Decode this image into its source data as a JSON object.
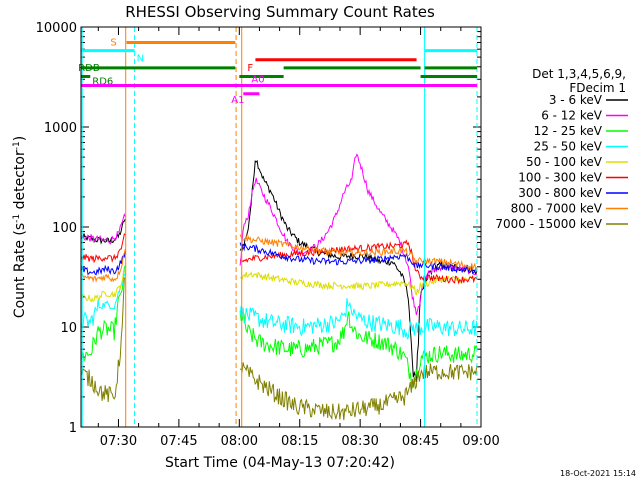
{
  "chart_data": {
    "type": "line",
    "title": "RHESSI Observing Summary Count Rates",
    "xlabel": "Start Time (04-May-13 07:20:42)",
    "ylabel_main": "Count Rate (s",
    "ylabel_sup1": "-1",
    "ylabel_mid": " detector",
    "ylabel_sup2": "-1",
    "ylabel_end": ")",
    "yscale": "log",
    "ylim": [
      1,
      10000
    ],
    "xlim": [
      20.7,
      120
    ],
    "x_unit": "minutes after 07:00 UT",
    "x_ticks": [
      {
        "value": 30,
        "label": "07:30"
      },
      {
        "value": 45,
        "label": "07:45"
      },
      {
        "value": 60,
        "label": "08:00"
      },
      {
        "value": 75,
        "label": "08:15"
      },
      {
        "value": 90,
        "label": "08:30"
      },
      {
        "value": 105,
        "label": "08:45"
      },
      {
        "value": 120,
        "label": "09:00"
      }
    ],
    "y_ticks": [
      {
        "value": 1,
        "label": "1"
      },
      {
        "value": 10,
        "label": "10"
      },
      {
        "value": 100,
        "label": "100"
      },
      {
        "value": 1000,
        "label": "1000"
      },
      {
        "value": 10000,
        "label": "10000"
      }
    ],
    "legend_header": [
      "Det 1,3,4,5,6,9,",
      "FDecim 1"
    ],
    "series": [
      {
        "name": "3 - 6 keV",
        "color": "#000000",
        "points": [
          [
            20.7,
            80
          ],
          [
            24,
            75
          ],
          [
            28,
            72
          ],
          [
            30,
            80
          ],
          [
            31,
            100
          ],
          [
            31.5,
            120
          ],
          [
            60.2,
            55
          ],
          [
            62,
            85
          ],
          [
            63,
            180
          ],
          [
            64,
            500
          ],
          [
            66,
            300
          ],
          [
            68,
            220
          ],
          [
            70,
            140
          ],
          [
            72,
            95
          ],
          [
            75,
            70
          ],
          [
            80,
            55
          ],
          [
            85,
            50
          ],
          [
            88,
            52
          ],
          [
            92,
            50
          ],
          [
            95,
            45
          ],
          [
            98,
            45
          ],
          [
            100,
            35
          ],
          [
            101,
            28
          ],
          [
            102,
            20
          ],
          [
            103,
            4
          ],
          [
            104,
            3.2
          ],
          [
            105,
            20
          ],
          [
            107,
            35
          ],
          [
            110,
            42
          ],
          [
            113,
            40
          ],
          [
            117,
            38
          ],
          [
            119,
            35
          ]
        ]
      },
      {
        "name": "6 - 12 keV",
        "color": "#ff00ff",
        "points": [
          [
            20.7,
            80
          ],
          [
            24,
            76
          ],
          [
            28,
            73
          ],
          [
            30,
            85
          ],
          [
            31,
            110
          ],
          [
            31.5,
            125
          ],
          [
            60.2,
            40
          ],
          [
            61,
            100
          ],
          [
            62,
            120
          ],
          [
            63,
            200
          ],
          [
            64,
            300
          ],
          [
            66,
            210
          ],
          [
            68,
            150
          ],
          [
            70,
            100
          ],
          [
            72,
            70
          ],
          [
            75,
            55
          ],
          [
            78,
            60
          ],
          [
            80,
            70
          ],
          [
            82,
            90
          ],
          [
            84,
            130
          ],
          [
            86,
            220
          ],
          [
            88,
            300
          ],
          [
            89,
            550
          ],
          [
            90,
            430
          ],
          [
            92,
            230
          ],
          [
            95,
            140
          ],
          [
            98,
            95
          ],
          [
            100,
            70
          ],
          [
            102,
            40
          ],
          [
            103,
            20
          ],
          [
            104,
            14
          ],
          [
            105,
            22
          ],
          [
            107,
            35
          ],
          [
            110,
            40
          ],
          [
            115,
            38
          ],
          [
            119,
            35
          ]
        ]
      },
      {
        "name": "12 - 25 keV",
        "color": "#00ff00",
        "points": [
          [
            20.7,
            5
          ],
          [
            23,
            5.5
          ],
          [
            25,
            9
          ],
          [
            27,
            9.5
          ],
          [
            29,
            9
          ],
          [
            30,
            18
          ],
          [
            31,
            25
          ],
          [
            31.5,
            40
          ],
          [
            60.2,
            14
          ],
          [
            62,
            9
          ],
          [
            65,
            7
          ],
          [
            68,
            6.5
          ],
          [
            72,
            6
          ],
          [
            76,
            6
          ],
          [
            80,
            6.5
          ],
          [
            84,
            7
          ],
          [
            86,
            9
          ],
          [
            87,
            14
          ],
          [
            88,
            10
          ],
          [
            90,
            8
          ],
          [
            93,
            7.5
          ],
          [
            96,
            7
          ],
          [
            99,
            6
          ],
          [
            101,
            5
          ],
          [
            103,
            3
          ],
          [
            104,
            3.5
          ],
          [
            105,
            5
          ],
          [
            110,
            5.5
          ],
          [
            115,
            5.2
          ],
          [
            119,
            5.5
          ]
        ]
      },
      {
        "name": "25 - 50 keV",
        "color": "#00ffff",
        "points": [
          [
            20.7,
            12
          ],
          [
            23,
            11
          ],
          [
            25,
            16
          ],
          [
            27,
            17
          ],
          [
            29,
            16
          ],
          [
            30,
            22
          ],
          [
            31,
            28
          ],
          [
            31.5,
            35
          ],
          [
            60.2,
            14
          ],
          [
            62,
            13
          ],
          [
            65,
            12
          ],
          [
            68,
            11
          ],
          [
            72,
            10.5
          ],
          [
            76,
            10
          ],
          [
            80,
            10.5
          ],
          [
            84,
            11
          ],
          [
            86,
            13
          ],
          [
            87,
            18
          ],
          [
            88,
            14
          ],
          [
            90,
            12
          ],
          [
            93,
            11
          ],
          [
            96,
            10.5
          ],
          [
            100,
            10
          ],
          [
            102,
            9
          ],
          [
            103,
            10
          ],
          [
            104,
            9.5
          ],
          [
            105,
            10
          ],
          [
            110,
            10
          ],
          [
            115,
            9.5
          ],
          [
            119,
            9.8
          ]
        ]
      },
      {
        "name": "50 - 100 keV",
        "color": "#dddd00",
        "points": [
          [
            20.7,
            20
          ],
          [
            24,
            19
          ],
          [
            27,
            22
          ],
          [
            29,
            21
          ],
          [
            30,
            24
          ],
          [
            31,
            30
          ],
          [
            31.5,
            35
          ],
          [
            60.2,
            32
          ],
          [
            63,
            34
          ],
          [
            66,
            32
          ],
          [
            70,
            30
          ],
          [
            74,
            28
          ],
          [
            78,
            27
          ],
          [
            82,
            26
          ],
          [
            86,
            26
          ],
          [
            90,
            25.5
          ],
          [
            94,
            26
          ],
          [
            98,
            27
          ],
          [
            101,
            28
          ],
          [
            103,
            25
          ],
          [
            104,
            22
          ],
          [
            105,
            26
          ],
          [
            110,
            30
          ],
          [
            115,
            30
          ],
          [
            119,
            30
          ]
        ]
      },
      {
        "name": "100 - 300 keV",
        "color": "#ff0000",
        "points": [
          [
            20.7,
            50
          ],
          [
            24,
            48
          ],
          [
            27,
            50
          ],
          [
            29,
            48
          ],
          [
            30,
            55
          ],
          [
            31,
            65
          ],
          [
            31.5,
            80
          ],
          [
            60.2,
            45
          ],
          [
            63,
            48
          ],
          [
            66,
            50
          ],
          [
            70,
            52
          ],
          [
            74,
            54
          ],
          [
            78,
            56
          ],
          [
            82,
            58
          ],
          [
            86,
            60
          ],
          [
            90,
            61
          ],
          [
            94,
            63
          ],
          [
            98,
            64
          ],
          [
            101,
            66
          ],
          [
            102,
            70
          ],
          [
            103,
            50
          ],
          [
            104,
            35
          ],
          [
            105,
            32
          ],
          [
            108,
            31
          ],
          [
            112,
            30
          ],
          [
            116,
            30
          ],
          [
            119,
            30
          ]
        ]
      },
      {
        "name": "300 - 800 keV",
        "color": "#0000ff",
        "points": [
          [
            20.7,
            37
          ],
          [
            24,
            35
          ],
          [
            27,
            38
          ],
          [
            29,
            36
          ],
          [
            30,
            40
          ],
          [
            31,
            48
          ],
          [
            31.5,
            55
          ],
          [
            60.2,
            65
          ],
          [
            63,
            62
          ],
          [
            66,
            58
          ],
          [
            70,
            52
          ],
          [
            74,
            48
          ],
          [
            78,
            46
          ],
          [
            82,
            45
          ],
          [
            86,
            45
          ],
          [
            90,
            46
          ],
          [
            94,
            47
          ],
          [
            98,
            50
          ],
          [
            101,
            52
          ],
          [
            103,
            45
          ],
          [
            104,
            40
          ],
          [
            105,
            42
          ],
          [
            110,
            40
          ],
          [
            115,
            38
          ],
          [
            119,
            37
          ]
        ]
      },
      {
        "name": "800 - 7000 keV",
        "color": "#ff8000",
        "points": [
          [
            20.7,
            32
          ],
          [
            24,
            30
          ],
          [
            27,
            32
          ],
          [
            29,
            30
          ],
          [
            30,
            34
          ],
          [
            31,
            45
          ],
          [
            31.5,
            60
          ],
          [
            60.2,
            80
          ],
          [
            63,
            75
          ],
          [
            66,
            72
          ],
          [
            70,
            68
          ],
          [
            74,
            64
          ],
          [
            78,
            60
          ],
          [
            82,
            57
          ],
          [
            86,
            55
          ],
          [
            90,
            55
          ],
          [
            94,
            56
          ],
          [
            98,
            57
          ],
          [
            101,
            58
          ],
          [
            103,
            50
          ],
          [
            104,
            45
          ],
          [
            105,
            46
          ],
          [
            110,
            45
          ],
          [
            115,
            42
          ],
          [
            119,
            40
          ]
        ]
      },
      {
        "name": "7000 - 15000 keV",
        "color": "#808000",
        "points": [
          [
            20.7,
            3.5
          ],
          [
            23,
            3
          ],
          [
            26,
            2.2
          ],
          [
            29,
            2
          ],
          [
            30,
            4
          ],
          [
            31,
            10
          ],
          [
            31.5,
            30
          ],
          [
            60.2,
            4
          ],
          [
            63,
            3.2
          ],
          [
            66,
            2.6
          ],
          [
            70,
            2
          ],
          [
            74,
            1.6
          ],
          [
            78,
            1.5
          ],
          [
            82,
            1.4
          ],
          [
            86,
            1.4
          ],
          [
            90,
            1.5
          ],
          [
            94,
            1.6
          ],
          [
            98,
            1.8
          ],
          [
            101,
            2
          ],
          [
            103,
            2.5
          ],
          [
            104,
            3
          ],
          [
            105,
            3.5
          ],
          [
            110,
            3.6
          ],
          [
            115,
            3.5
          ],
          [
            119,
            3.6
          ]
        ]
      }
    ],
    "flags": [
      {
        "label": "S",
        "color": "#ff8000",
        "y": 7000,
        "segments": [
          [
            32,
            59
          ]
        ]
      },
      {
        "label": "N",
        "color": "#00ffff",
        "y": 5800,
        "segments": [
          [
            20.7,
            34
          ],
          [
            106,
            119
          ]
        ]
      },
      {
        "label": "F",
        "color": "#ff0000",
        "y": 4700,
        "segments": [
          [
            64,
            104
          ]
        ]
      },
      {
        "label": "RDB",
        "color": "#008000",
        "y": 3900,
        "segments": [
          [
            20.7,
            59
          ],
          [
            71,
            105
          ],
          [
            106,
            119
          ]
        ]
      },
      {
        "label": "RD6",
        "color": "#008000",
        "y": 3200,
        "segments": [
          [
            20.7,
            23
          ],
          [
            60,
            71
          ],
          [
            105,
            119
          ]
        ]
      },
      {
        "label": "A0",
        "color": "#ff00ff",
        "y": 2600,
        "segments": [
          [
            20.7,
            119
          ]
        ]
      },
      {
        "label": "A1",
        "color": "#ff00ff",
        "y": 2150,
        "segments": [
          [
            61,
            65
          ]
        ]
      }
    ],
    "event_lines": [
      {
        "x": 21,
        "color": "#00ffff",
        "style": "solid"
      },
      {
        "x": 31.8,
        "color": "#ff8000",
        "style": "solid"
      },
      {
        "x": 34,
        "color": "#00ffff",
        "style": "dashed"
      },
      {
        "x": 59.2,
        "color": "#ff8000",
        "style": "dashed"
      },
      {
        "x": 60.6,
        "color": "#ff8000",
        "style": "solid"
      },
      {
        "x": 106,
        "color": "#00ffff",
        "style": "solid"
      },
      {
        "x": 119,
        "color": "#00ffff",
        "style": "dashed"
      }
    ],
    "footer_timestamp": "18-Oct-2021 15:14"
  }
}
